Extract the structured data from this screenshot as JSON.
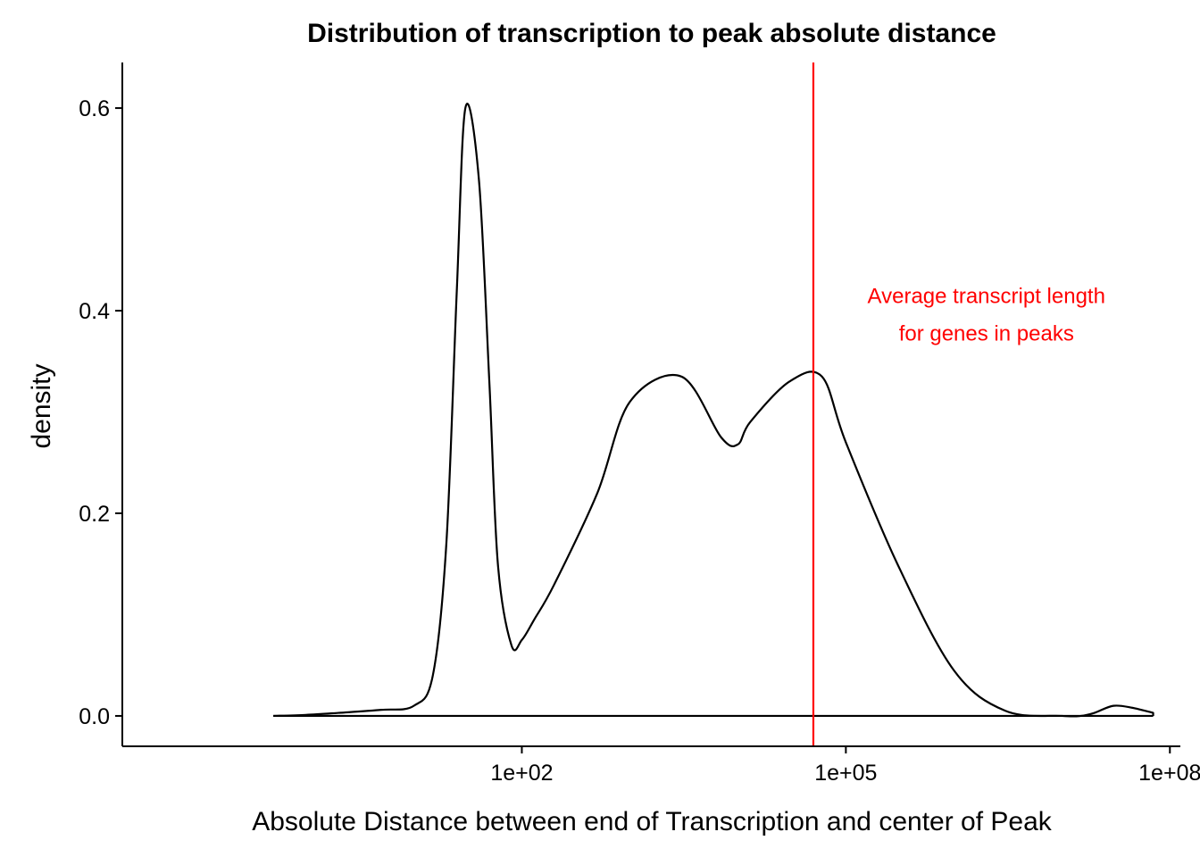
{
  "chart_data": {
    "type": "line",
    "title": "Distribution of transcription to peak absolute distance",
    "xlabel": "Absolute Distance between end of Transcription and center of Peak",
    "ylabel": "density",
    "x_scale": "log10",
    "x_ticks": [
      {
        "value": 100,
        "label": "1e+02"
      },
      {
        "value": 100000,
        "label": "1e+05"
      },
      {
        "value": 100000000,
        "label": "1e+08"
      }
    ],
    "y_ticks": [
      {
        "value": 0.0,
        "label": "0.0"
      },
      {
        "value": 0.2,
        "label": "0.2"
      },
      {
        "value": 0.4,
        "label": "0.4"
      },
      {
        "value": 0.6,
        "label": "0.6"
      }
    ],
    "xlim": [
      0.02,
      125000000
    ],
    "ylim": [
      -0.03,
      0.645
    ],
    "grid": false,
    "legend": "none",
    "series": [
      {
        "color": "#000000",
        "x": [
          0.5,
          1,
          2,
          5,
          10,
          15,
          20,
          25,
          30,
          40,
          50,
          60,
          80,
          100,
          130,
          200,
          500,
          1000,
          3000,
          7000,
          10000,
          13000,
          30000,
          60000,
          100000,
          300000,
          1000000,
          3000000,
          10000000,
          15000000,
          20000000,
          30000000,
          45000000,
          70000000
        ],
        "y": [
          0.0,
          0.001,
          0.003,
          0.006,
          0.01,
          0.04,
          0.17,
          0.42,
          0.6,
          0.53,
          0.33,
          0.15,
          0.07,
          0.075,
          0.095,
          0.13,
          0.22,
          0.31,
          0.335,
          0.275,
          0.268,
          0.29,
          0.33,
          0.335,
          0.27,
          0.15,
          0.045,
          0.005,
          0.0,
          0.0,
          0.003,
          0.01,
          0.008,
          0.003
        ]
      }
    ],
    "baseline": {
      "from": 0.5,
      "to": 70000000,
      "y": 0.0
    },
    "vline": {
      "x": 50000,
      "color": "#ff0000"
    },
    "annotation": {
      "lines": [
        "Average transcript length",
        "for genes in peaks"
      ],
      "color": "#ff0000",
      "x": 2000000,
      "y": 0.395
    }
  }
}
